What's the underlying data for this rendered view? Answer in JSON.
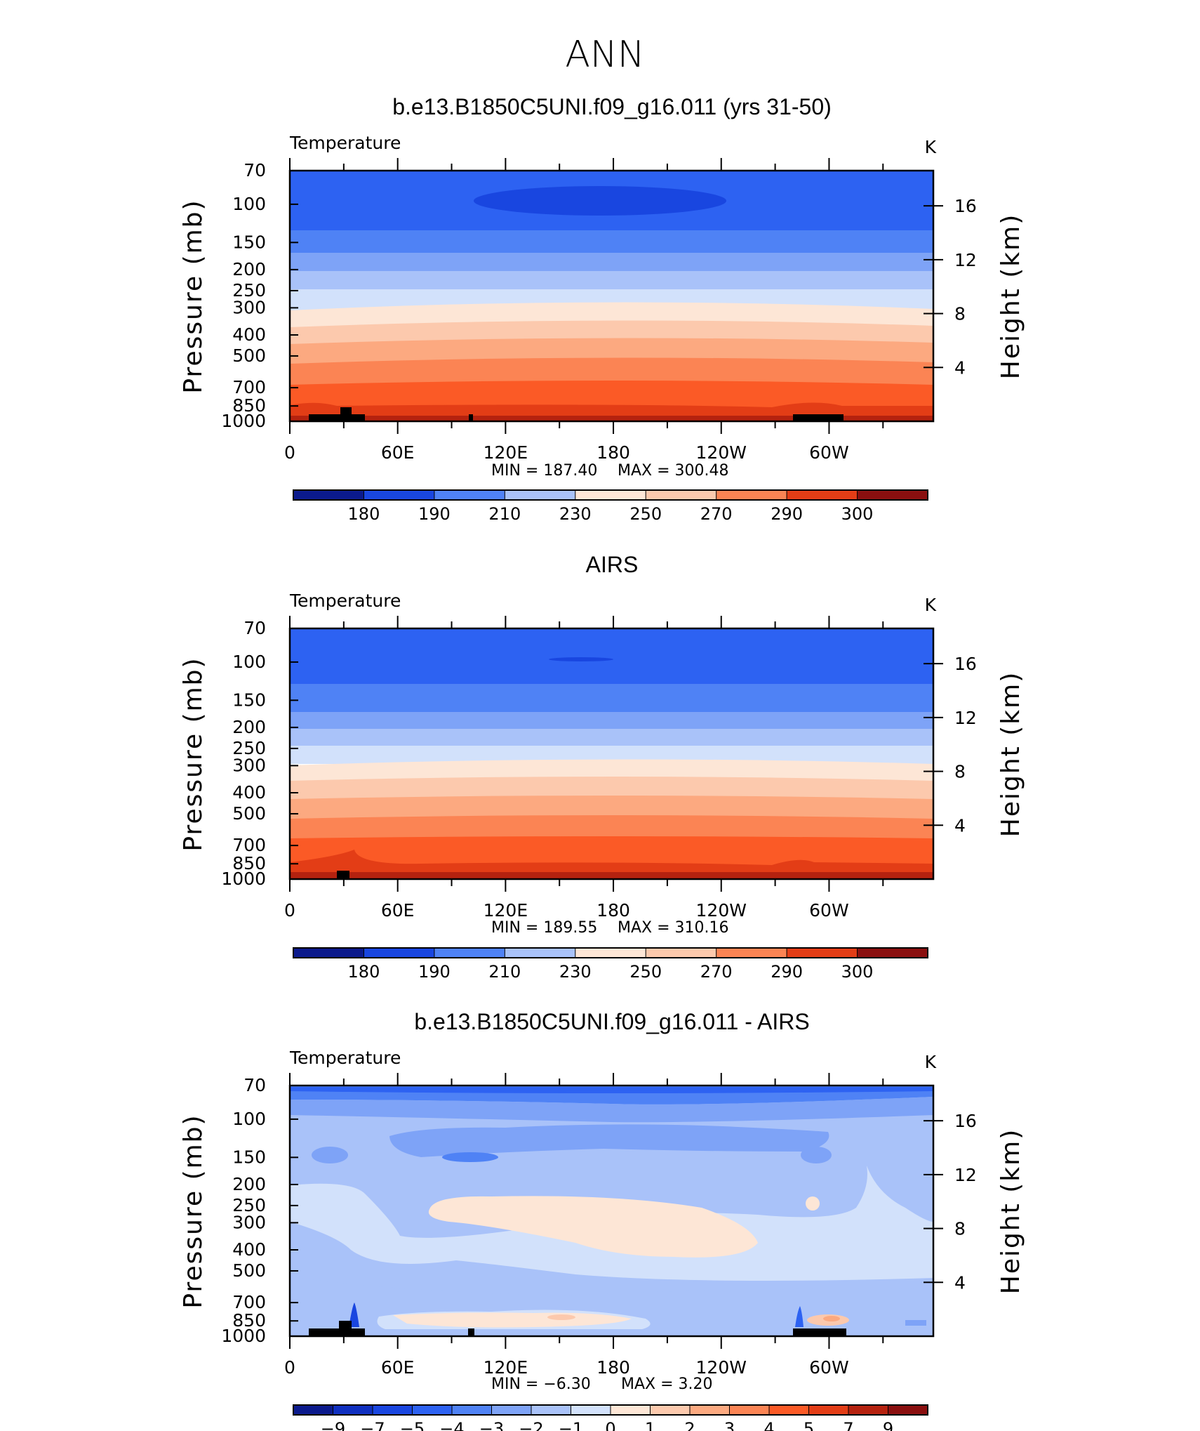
{
  "main_title": "ANN",
  "chart_data": [
    {
      "type": "heatmap",
      "panel_title": "b.e13.B1850C5UNI.f09_g16.011 (yrs 31-50)",
      "subtitle": "Temperature",
      "units": "K",
      "ylabel": "Pressure (mb)",
      "ylabel_right": "Height (km)",
      "x_ticks": [
        "0",
        "60E",
        "120E",
        "180",
        "120W",
        "60W"
      ],
      "y_ticks": [
        "70",
        "100",
        "150",
        "200",
        "250",
        "300",
        "400",
        "500",
        "700",
        "850",
        "1000"
      ],
      "y_ticks_right": [
        "16",
        "12",
        "8",
        "4"
      ],
      "min_label": "MIN = 187.40",
      "max_label": "MAX = 300.48",
      "min": 187.4,
      "max": 300.48,
      "colorbar_labels": [
        "180",
        "190",
        "210",
        "230",
        "250",
        "270",
        "290",
        "300"
      ]
    },
    {
      "type": "heatmap",
      "panel_title": "AIRS",
      "subtitle": "Temperature",
      "units": "K",
      "ylabel": "Pressure (mb)",
      "ylabel_right": "Height (km)",
      "x_ticks": [
        "0",
        "60E",
        "120E",
        "180",
        "120W",
        "60W"
      ],
      "y_ticks": [
        "70",
        "100",
        "150",
        "200",
        "250",
        "300",
        "400",
        "500",
        "700",
        "850",
        "1000"
      ],
      "y_ticks_right": [
        "16",
        "12",
        "8",
        "4"
      ],
      "min_label": "MIN = 189.55",
      "max_label": "MAX = 310.16",
      "min": 189.55,
      "max": 310.16,
      "colorbar_labels": [
        "180",
        "190",
        "210",
        "230",
        "250",
        "270",
        "290",
        "300"
      ]
    },
    {
      "type": "heatmap",
      "panel_title": "b.e13.B1850C5UNI.f09_g16.011 - AIRS",
      "subtitle": "Temperature",
      "units": "K",
      "ylabel": "Pressure (mb)",
      "ylabel_right": "Height (km)",
      "x_ticks": [
        "0",
        "60E",
        "120E",
        "180",
        "120W",
        "60W"
      ],
      "y_ticks": [
        "70",
        "100",
        "150",
        "200",
        "250",
        "300",
        "400",
        "500",
        "700",
        "850",
        "1000"
      ],
      "y_ticks_right": [
        "16",
        "12",
        "8",
        "4"
      ],
      "min_label": "MIN = −6.30",
      "max_label": "MAX = 3.20",
      "min": -6.3,
      "max": 3.2,
      "colorbar_labels": [
        "−9",
        "−7",
        "−5",
        "−4",
        "−3",
        "−2",
        "−1",
        "0",
        "1",
        "2",
        "3",
        "4",
        "5",
        "7",
        "9"
      ]
    }
  ],
  "palette": [
    "#0b1a8c",
    "#0f2fbf",
    "#1946e0",
    "#2d62f2",
    "#4f82f5",
    "#7ea3f7",
    "#a9c2f9",
    "#d2e1fb",
    "#fde6d6",
    "#fcc9ad",
    "#fca980",
    "#fb8454",
    "#fb5a26",
    "#e33d16",
    "#b5220f",
    "#8a0f0f"
  ]
}
